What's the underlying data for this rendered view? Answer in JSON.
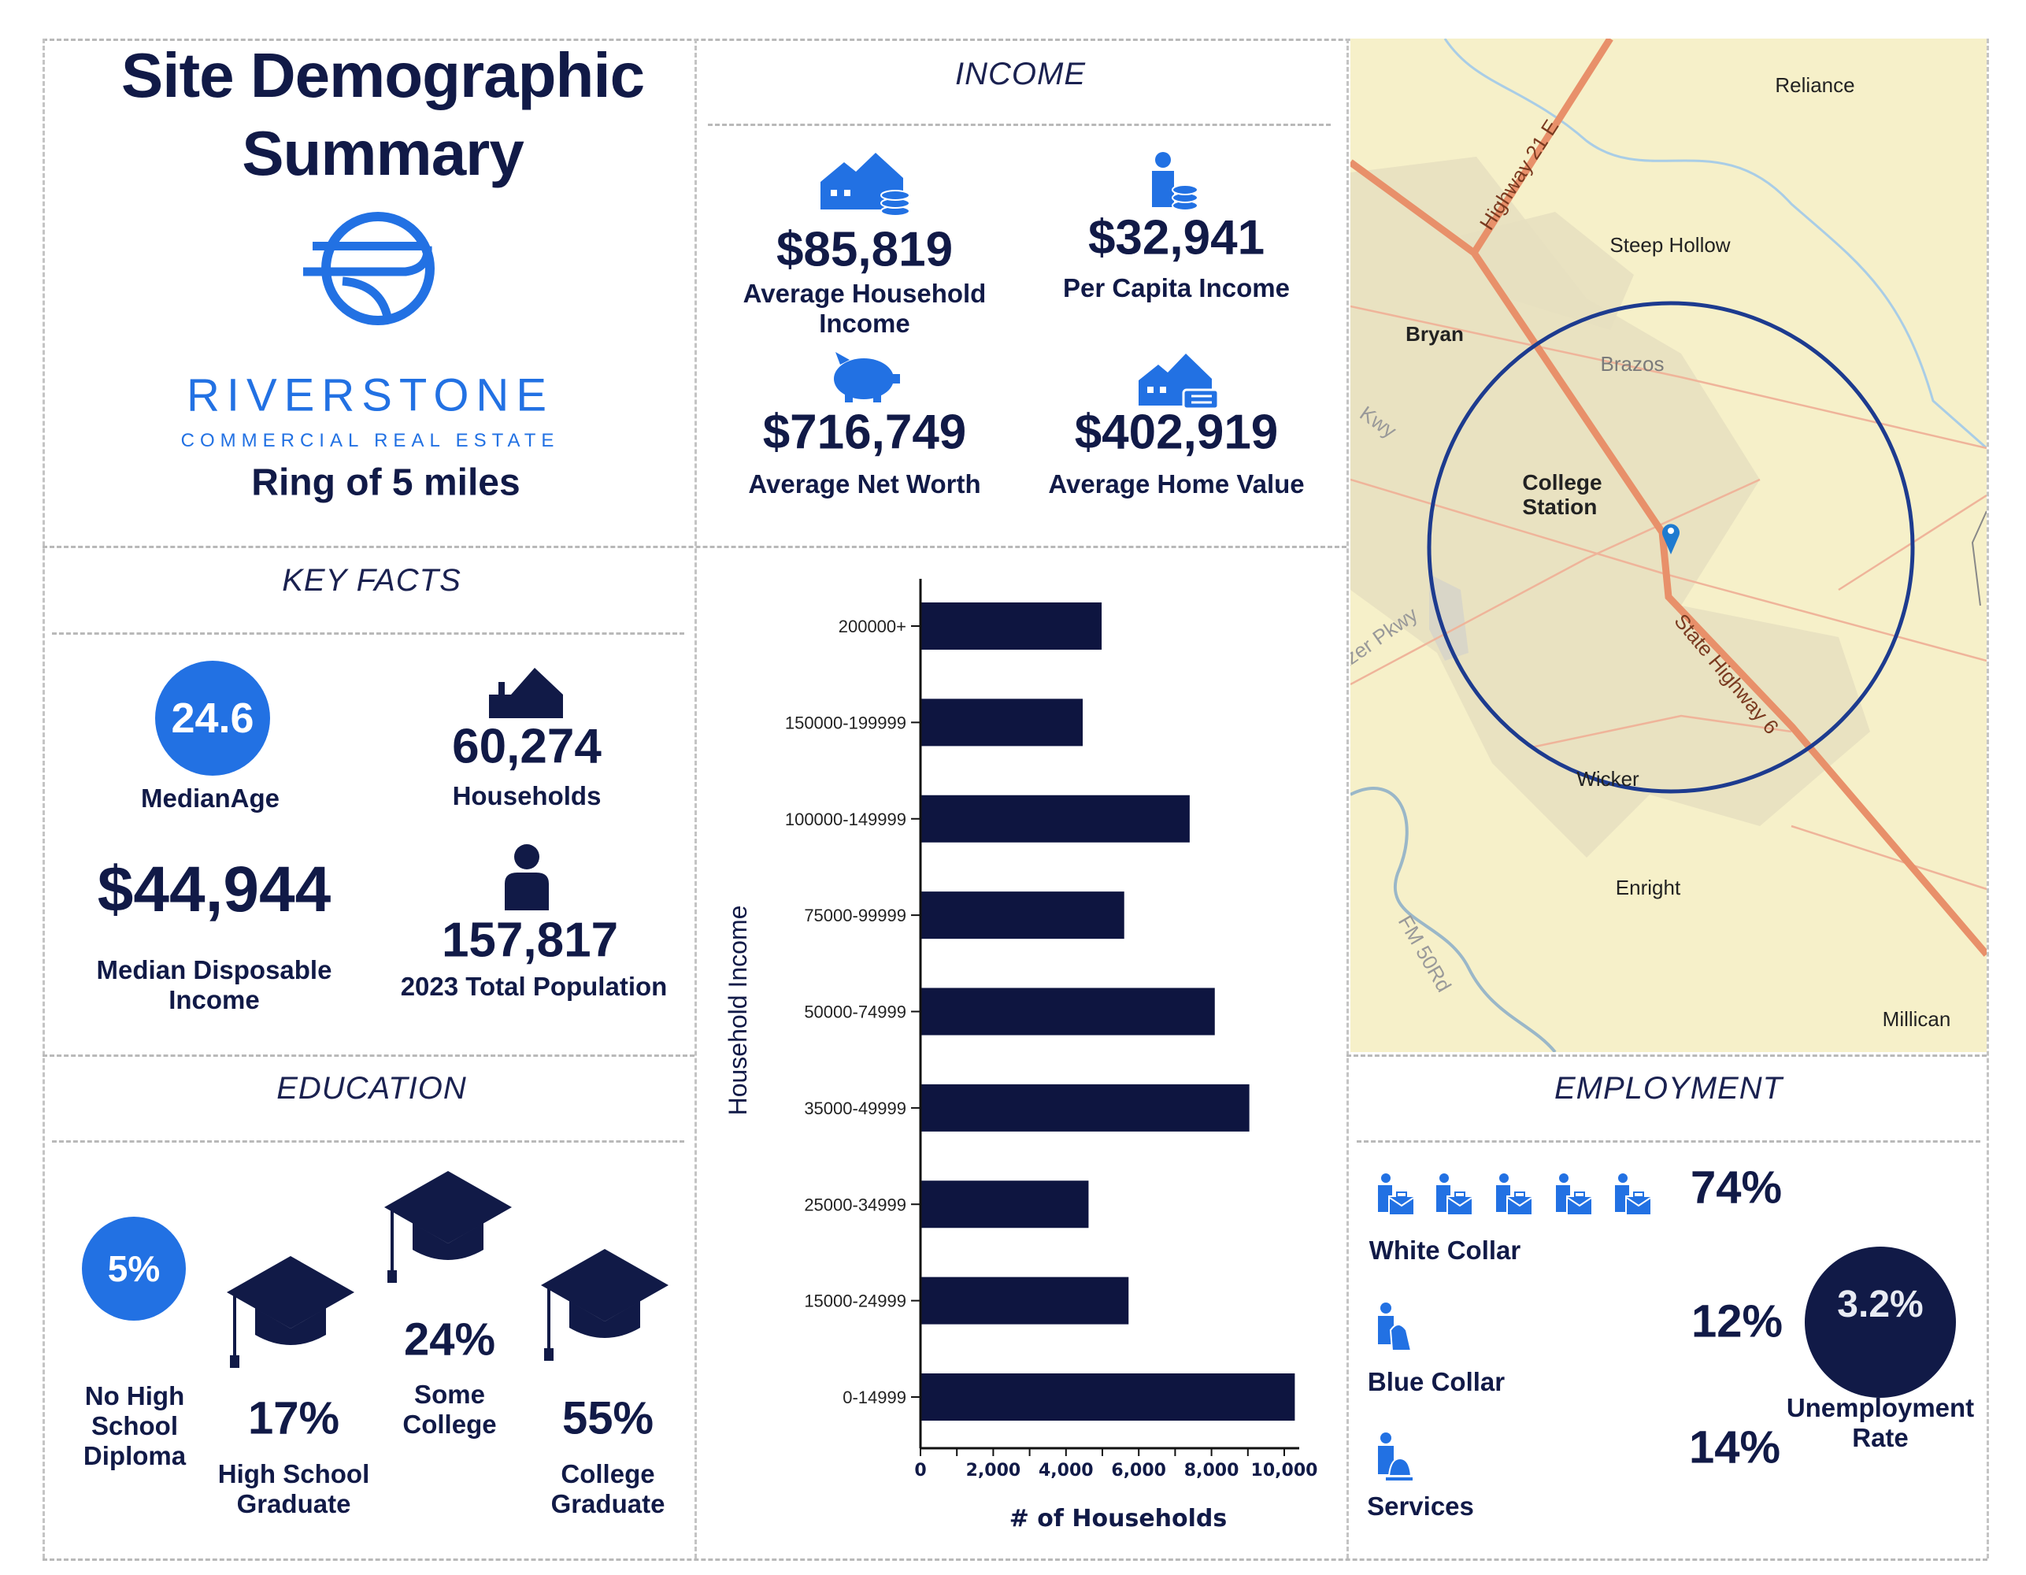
{
  "title": {
    "line1": "Site Demographic",
    "line2": "Summary"
  },
  "logo": {
    "name": "RIVERSTONE",
    "tagline": "COMMERCIAL REAL ESTATE"
  },
  "ring": "Ring of 5 miles",
  "colors": {
    "navy": "#111a47",
    "blue": "#2271e3",
    "map_bg": "#f6f0c9",
    "highway": "#e8906a"
  },
  "income": {
    "header": "INCOME",
    "items": [
      {
        "value": "$85,819",
        "label": "Average Household\nIncome",
        "icon": "house-coins-icon"
      },
      {
        "value": "$32,941",
        "label": "Per Capita Income",
        "icon": "person-coins-icon"
      },
      {
        "value": "$716,749",
        "label": "Average Net Worth",
        "icon": "piggy-bank-icon"
      },
      {
        "value": "$402,919",
        "label": "Average Home Value",
        "icon": "house-tag-icon"
      }
    ]
  },
  "key_facts": {
    "header": "KEY FACTS",
    "median_age": {
      "value": "24.6",
      "label": "MedianAge"
    },
    "households": {
      "value": "60,274",
      "label": "Households"
    },
    "median_disposable_income": {
      "value": "$44,944",
      "label": "Median Disposable\nIncome"
    },
    "population": {
      "value": "157,817",
      "label": "2023 Total Population"
    }
  },
  "education": {
    "header": "EDUCATION",
    "items": [
      {
        "value": "5%",
        "label": "No High\nSchool\nDiploma"
      },
      {
        "value": "17%",
        "label": "High School\nGraduate"
      },
      {
        "value": "24%",
        "label": "Some\nCollege"
      },
      {
        "value": "55%",
        "label": "College\nGraduate"
      }
    ]
  },
  "chart_data": {
    "type": "bar",
    "orientation": "horizontal",
    "categories": [
      "200000+",
      "150000-199999",
      "100000-149999",
      "75000-99999",
      "50000-74999",
      "35000-49999",
      "25000-34999",
      "15000-24999",
      "0-14999"
    ],
    "values": [
      4980,
      4460,
      7400,
      5600,
      8090,
      9040,
      4620,
      5720,
      10290
    ],
    "xlabel": "# of Households",
    "ylabel": "Household Income",
    "xlim": [
      0,
      10400
    ],
    "xticks": [
      "0",
      "2,000",
      "4,000",
      "6,000",
      "8,000",
      "10,000"
    ],
    "xtick_values": [
      0,
      2000,
      4000,
      6000,
      8000,
      10000
    ],
    "grid": false
  },
  "map": {
    "places": [
      "Reliance",
      "Steep Hollow",
      "Bryan",
      "Brazos",
      "College\nStation",
      "Wicker",
      "Enright",
      "Millican"
    ],
    "roads": [
      "Highway 21 E",
      "State Highway 6",
      "FM 50Rd",
      "Kwy",
      "tzer Pkwy"
    ]
  },
  "employment": {
    "header": "EMPLOYMENT",
    "white_collar": {
      "value": "74%",
      "label": "White Collar"
    },
    "blue_collar": {
      "value": "12%",
      "label": "Blue Collar"
    },
    "services": {
      "value": "14%",
      "label": "Services"
    },
    "unemployment": {
      "value": "3.2%",
      "label": "Unemployment\nRate"
    }
  }
}
